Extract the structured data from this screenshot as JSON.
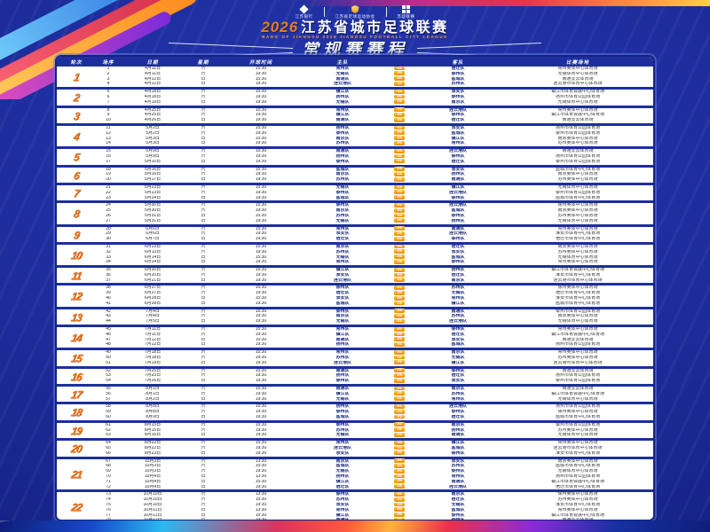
{
  "poster": {
    "logos": [
      {
        "icon": "bank-diamond-icon",
        "label": "江苏银行"
      },
      {
        "icon": "league-shield-icon",
        "label": "江苏省足球运动协会"
      },
      {
        "icon": "sponsor-emblem-icon",
        "label": "苏超联赛"
      }
    ],
    "year": "2026",
    "title": "江苏省城市足球联赛",
    "subtitle_en": "BANK OF JIANGSU 2026 JIANGSU FOOTBALL CITY LEAGUE",
    "banner": "常规赛赛程"
  },
  "colors": {
    "accent_orange": "#f0791e",
    "navy": "#1c2f9e",
    "gold_badge": "#f5a623",
    "card_white": "#ffffff"
  },
  "table": {
    "header_cells": [
      "轮次",
      "场序",
      "日期",
      "星期",
      "开球时间",
      "主队",
      "",
      "客队",
      "比赛场地"
    ],
    "vs_label": "VS",
    "rounds": [
      {
        "n": "1",
        "matches": [
          {
            "no": "1",
            "date": "4月11日",
            "wk": "六",
            "time": "15:30",
            "home": "常州队",
            "away": "宿迁队",
            "venue": "常州奥体中心体育场"
          },
          {
            "no": "2",
            "date": "4月11日",
            "wk": "六",
            "time": "19:30",
            "home": "无锡队",
            "away": "徐州队",
            "venue": "无锡体育中心体育场"
          },
          {
            "no": "3",
            "date": "4月12日",
            "wk": "日",
            "time": "15:30",
            "home": "南通队",
            "away": "盐城队",
            "venue": "南通支云体育场"
          },
          {
            "no": "4",
            "date": "4月12日",
            "wk": "日",
            "time": "19:30",
            "home": "连云港队",
            "away": "苏州队",
            "venue": "连云港市体育中心体育场"
          }
        ]
      },
      {
        "n": "2",
        "matches": [
          {
            "no": "5",
            "date": "4月18日",
            "wk": "六",
            "time": "15:30",
            "home": "镇江队",
            "away": "淮安队",
            "venue": "镇江市体育会展中心体育场"
          },
          {
            "no": "6",
            "date": "4月18日",
            "wk": "六",
            "time": "19:30",
            "home": "扬州队",
            "away": "泰州队",
            "venue": "扬州市体育公园体育场"
          },
          {
            "no": "7",
            "date": "4月19日",
            "wk": "日",
            "time": "19:30",
            "home": "无锡队",
            "away": "南京队",
            "venue": "无锡体育中心体育场"
          }
        ]
      },
      {
        "n": "3",
        "matches": [
          {
            "no": "8",
            "date": "4月25日",
            "wk": "六",
            "time": "15:30",
            "home": "常州队",
            "away": "连云港队",
            "venue": "常州奥体中心体育场"
          },
          {
            "no": "9",
            "date": "4月25日",
            "wk": "六",
            "time": "19:30",
            "home": "镇江队",
            "away": "徐州队",
            "venue": "镇江市体育会展中心体育场"
          },
          {
            "no": "10",
            "date": "4月26日",
            "wk": "日",
            "time": "19:30",
            "home": "南通队",
            "away": "宿迁队",
            "venue": "南通支云体育场"
          }
        ]
      },
      {
        "n": "4",
        "matches": [
          {
            "no": "11",
            "date": "5月2日",
            "wk": "六",
            "time": "15:30",
            "home": "扬州队",
            "away": "淮安队",
            "venue": "扬州市体育公园体育场"
          },
          {
            "no": "12",
            "date": "5月2日",
            "wk": "六",
            "time": "19:30",
            "home": "泰州队",
            "away": "盐城队",
            "venue": "泰州市体育公园体育场"
          },
          {
            "no": "13",
            "date": "5月3日",
            "wk": "日",
            "time": "15:30",
            "home": "南京队",
            "away": "镇江队",
            "venue": "南京奥体中心体育场"
          },
          {
            "no": "14",
            "date": "5月3日",
            "wk": "日",
            "time": "19:30",
            "home": "苏州队",
            "away": "常州队",
            "venue": "苏州奥体中心体育场"
          }
        ]
      },
      {
        "n": "5",
        "matches": [
          {
            "no": "15",
            "date": "5月9日",
            "wk": "六",
            "time": "15:30",
            "home": "南通队",
            "away": "连云港队",
            "venue": "南通支云体育场"
          },
          {
            "no": "16",
            "date": "5月9日",
            "wk": "六",
            "time": "19:30",
            "home": "扬州队",
            "away": "徐州队",
            "venue": "扬州市体育公园体育场"
          },
          {
            "no": "17",
            "date": "5月10日",
            "wk": "日",
            "time": "19:30",
            "home": "泰州队",
            "away": "宿迁队",
            "venue": "泰州市体育公园体育场"
          }
        ]
      },
      {
        "n": "6",
        "matches": [
          {
            "no": "18",
            "date": "5月16日",
            "wk": "六",
            "time": "15:30",
            "home": "盐城队",
            "away": "淮安队",
            "venue": "盐城市体育中心体育场"
          },
          {
            "no": "19",
            "date": "5月16日",
            "wk": "六",
            "time": "19:30",
            "home": "南京队",
            "away": "扬州队",
            "venue": "南京奥体中心体育场"
          },
          {
            "no": "20",
            "date": "5月17日",
            "wk": "日",
            "time": "19:30",
            "home": "苏州队",
            "away": "南通队",
            "venue": "苏州奥体中心体育场"
          }
        ]
      },
      {
        "n": "7",
        "matches": [
          {
            "no": "21",
            "date": "5月23日",
            "wk": "六",
            "time": "15:30",
            "home": "无锡队",
            "away": "镇江队",
            "venue": "无锡体育中心体育场"
          },
          {
            "no": "22",
            "date": "5月23日",
            "wk": "六",
            "time": "19:30",
            "home": "泰州队",
            "away": "连云港队",
            "venue": "泰州市体育公园体育场"
          },
          {
            "no": "23",
            "date": "5月24日",
            "wk": "日",
            "time": "19:30",
            "home": "盐城队",
            "away": "徐州队",
            "venue": "盐城市体育中心体育场"
          }
        ]
      },
      {
        "n": "8",
        "matches": [
          {
            "no": "24",
            "date": "5月30日",
            "wk": "六",
            "time": "15:30",
            "home": "徐州队",
            "away": "连云港队",
            "venue": "徐州奥体中心体育场"
          },
          {
            "no": "25",
            "date": "5月30日",
            "wk": "六",
            "time": "19:30",
            "home": "南京队",
            "away": "盐城队",
            "venue": "南京奥体中心体育场"
          },
          {
            "no": "26",
            "date": "5月31日",
            "wk": "日",
            "time": "15:30",
            "home": "苏州队",
            "away": "泰州队",
            "venue": "苏州奥体中心体育场"
          },
          {
            "no": "27",
            "date": "5月31日",
            "wk": "日",
            "time": "19:30",
            "home": "无锡队",
            "away": "扬州队",
            "venue": "无锡体育中心体育场"
          }
        ]
      },
      {
        "n": "9",
        "matches": [
          {
            "no": "28",
            "date": "6月6日",
            "wk": "六",
            "time": "15:30",
            "home": "常州队",
            "away": "南通队",
            "venue": "常州奥体中心体育场"
          },
          {
            "no": "29",
            "date": "6月6日",
            "wk": "六",
            "time": "19:30",
            "home": "淮安队",
            "away": "连云港队",
            "venue": "淮安市体育中心体育场"
          },
          {
            "no": "30",
            "date": "6月7日",
            "wk": "日",
            "time": "19:30",
            "home": "宿迁队",
            "away": "徐州队",
            "venue": "宿迁市体育中心体育场"
          }
        ]
      },
      {
        "n": "10",
        "matches": [
          {
            "no": "31",
            "date": "6月13日",
            "wk": "六",
            "time": "15:30",
            "home": "南京队",
            "away": "宿迁队",
            "venue": "南京奥体中心体育场"
          },
          {
            "no": "32",
            "date": "6月13日",
            "wk": "六",
            "time": "19:30",
            "home": "苏州队",
            "away": "淮安队",
            "venue": "苏州奥体中心体育场"
          },
          {
            "no": "33",
            "date": "6月14日",
            "wk": "日",
            "time": "15:30",
            "home": "无锡队",
            "away": "盐城队",
            "venue": "无锡体育中心体育场"
          },
          {
            "no": "34",
            "date": "6月14日",
            "wk": "日",
            "time": "19:30",
            "home": "常州队",
            "away": "泰州队",
            "venue": "常州奥体中心体育场"
          }
        ]
      },
      {
        "n": "11",
        "matches": [
          {
            "no": "35",
            "date": "6月20日",
            "wk": "六",
            "time": "15:30",
            "home": "镇江队",
            "away": "扬州队",
            "venue": "镇江市体育会展中心体育场"
          },
          {
            "no": "36",
            "date": "6月20日",
            "wk": "六",
            "time": "19:30",
            "home": "淮安队",
            "away": "宿迁队",
            "venue": "淮安市体育中心体育场"
          },
          {
            "no": "37",
            "date": "6月21日",
            "wk": "日",
            "time": "19:30",
            "home": "连云港队",
            "away": "南京队",
            "venue": "连云港市体育中心体育场"
          }
        ]
      },
      {
        "n": "12",
        "matches": [
          {
            "no": "38",
            "date": "6月27日",
            "wk": "六",
            "time": "15:30",
            "home": "徐州队",
            "away": "苏州队",
            "venue": "徐州奥体中心体育场"
          },
          {
            "no": "39",
            "date": "6月27日",
            "wk": "六",
            "time": "19:30",
            "home": "宿迁队",
            "away": "无锡队",
            "venue": "宿迁市体育中心体育场"
          },
          {
            "no": "40",
            "date": "6月28日",
            "wk": "日",
            "time": "15:30",
            "home": "淮安队",
            "away": "常州队",
            "venue": "淮安市体育中心体育场"
          },
          {
            "no": "41",
            "date": "6月28日",
            "wk": "日",
            "time": "19:30",
            "home": "盐城队",
            "away": "镇江队",
            "venue": "盐城市体育中心体育场"
          }
        ]
      },
      {
        "n": "13",
        "matches": [
          {
            "no": "42",
            "date": "7月4日",
            "wk": "六",
            "time": "15:30",
            "home": "泰州队",
            "away": "南通队",
            "venue": "泰州市体育公园体育场"
          },
          {
            "no": "43",
            "date": "7月4日",
            "wk": "六",
            "time": "19:30",
            "home": "南京队",
            "away": "苏州队",
            "venue": "南京奥体中心体育场"
          },
          {
            "no": "44",
            "date": "7月5日",
            "wk": "日",
            "time": "19:30",
            "home": "无锡队",
            "away": "连云港队",
            "venue": "无锡体育中心体育场"
          }
        ]
      },
      {
        "n": "14",
        "matches": [
          {
            "no": "45",
            "date": "7月11日",
            "wk": "六",
            "time": "15:30",
            "home": "常州队",
            "away": "徐州队",
            "venue": "常州奥体中心体育场"
          },
          {
            "no": "46",
            "date": "7月11日",
            "wk": "六",
            "time": "19:30",
            "home": "镇江队",
            "away": "宿迁队",
            "venue": "镇江市体育会展中心体育场"
          },
          {
            "no": "47",
            "date": "7月12日",
            "wk": "日",
            "time": "15:30",
            "home": "南通队",
            "away": "淮安队",
            "venue": "南通支云体育场"
          },
          {
            "no": "48",
            "date": "7月12日",
            "wk": "日",
            "time": "19:30",
            "home": "扬州队",
            "away": "盐城队",
            "venue": "扬州市体育公园体育场"
          }
        ]
      },
      {
        "n": "15",
        "matches": [
          {
            "no": "49",
            "date": "7月18日",
            "wk": "六",
            "time": "15:30",
            "home": "常州队",
            "away": "南京队",
            "venue": "常州奥体中心体育场"
          },
          {
            "no": "50",
            "date": "7月18日",
            "wk": "六",
            "time": "19:30",
            "home": "苏州队",
            "away": "无锡队",
            "venue": "苏州奥体中心体育场"
          },
          {
            "no": "51",
            "date": "7月19日",
            "wk": "日",
            "time": "19:30",
            "home": "连云港队",
            "away": "镇江队",
            "venue": "连云港市体育中心体育场"
          }
        ]
      },
      {
        "n": "16",
        "matches": [
          {
            "no": "52",
            "date": "7月25日",
            "wk": "六",
            "time": "15:30",
            "home": "南通队",
            "away": "徐州队",
            "venue": "南通支云体育场"
          },
          {
            "no": "53",
            "date": "7月25日",
            "wk": "六",
            "time": "19:30",
            "home": "扬州队",
            "away": "宿迁队",
            "venue": "扬州市体育公园体育场"
          },
          {
            "no": "54",
            "date": "7月26日",
            "wk": "日",
            "time": "19:30",
            "home": "泰州队",
            "away": "淮安队",
            "venue": "泰州市体育公园体育场"
          }
        ]
      },
      {
        "n": "17",
        "matches": [
          {
            "no": "55",
            "date": "8月1日",
            "wk": "六",
            "time": "15:30",
            "home": "南通队",
            "away": "南京队",
            "venue": "南通支云体育场"
          },
          {
            "no": "56",
            "date": "8月1日",
            "wk": "六",
            "time": "19:30",
            "home": "镇江队",
            "away": "苏州队",
            "venue": "镇江市体育会展中心体育场"
          },
          {
            "no": "57",
            "date": "8月2日",
            "wk": "日",
            "time": "19:30",
            "home": "无锡队",
            "away": "常州队",
            "venue": "无锡体育中心体育场"
          }
        ]
      },
      {
        "n": "18",
        "matches": [
          {
            "no": "58",
            "date": "8月8日",
            "wk": "六",
            "time": "15:30",
            "home": "扬州队",
            "away": "连云港队",
            "venue": "扬州市体育公园体育场"
          },
          {
            "no": "59",
            "date": "8月8日",
            "wk": "六",
            "time": "19:30",
            "home": "徐州队",
            "away": "泰州队",
            "venue": "徐州奥体中心体育场"
          },
          {
            "no": "60",
            "date": "8月9日",
            "wk": "日",
            "time": "19:30",
            "home": "盐城队",
            "away": "宿迁队",
            "venue": "盐城市体育中心体育场"
          }
        ]
      },
      {
        "n": "19",
        "matches": [
          {
            "no": "61",
            "date": "8月15日",
            "wk": "六",
            "time": "15:30",
            "home": "泰州队",
            "away": "南京队",
            "venue": "泰州市体育公园体育场"
          },
          {
            "no": "62",
            "date": "8月15日",
            "wk": "六",
            "time": "19:30",
            "home": "苏州队",
            "away": "扬州队",
            "venue": "苏州奥体中心体育场"
          },
          {
            "no": "63",
            "date": "8月16日",
            "wk": "日",
            "time": "19:30",
            "home": "无锡队",
            "away": "南通队",
            "venue": "无锡体育中心体育场"
          }
        ]
      },
      {
        "n": "20",
        "matches": [
          {
            "no": "64",
            "date": "8月22日",
            "wk": "六",
            "time": "15:30",
            "home": "常州队",
            "away": "镇江队",
            "venue": "常州奥体中心体育场"
          },
          {
            "no": "65",
            "date": "8月22日",
            "wk": "六",
            "time": "19:30",
            "home": "连云港队",
            "away": "盐城队",
            "venue": "连云港市体育中心体育场"
          },
          {
            "no": "66",
            "date": "8月23日",
            "wk": "日",
            "time": "19:30",
            "home": "淮安队",
            "away": "徐州队",
            "venue": "淮安市体育中心体育场"
          }
        ]
      },
      {
        "n": "21",
        "matches": [
          {
            "no": "67",
            "date": "10月3日",
            "wk": "六",
            "time": "13:30",
            "home": "南京队",
            "away": "淮安队",
            "venue": "南京奥体中心体育场"
          },
          {
            "no": "68",
            "date": "10月3日",
            "wk": "六",
            "time": "15:30",
            "home": "盐城队",
            "away": "苏州队",
            "venue": "盐城市体育中心体育场"
          },
          {
            "no": "69",
            "date": "10月3日",
            "wk": "六",
            "time": "19:30",
            "home": "无锡队",
            "away": "泰州队",
            "venue": "无锡体育中心体育场"
          },
          {
            "no": "70",
            "date": "10月4日",
            "wk": "日",
            "time": "13:30",
            "home": "扬州队",
            "away": "常州队",
            "venue": "扬州市体育公园体育场"
          },
          {
            "no": "71",
            "date": "10月4日",
            "wk": "日",
            "time": "15:30",
            "home": "镇江队",
            "away": "南通队",
            "venue": "镇江市体育会展中心体育场"
          },
          {
            "no": "72",
            "date": "10月4日",
            "wk": "日",
            "time": "19:30",
            "home": "宿迁队",
            "away": "连云港队",
            "venue": "宿迁市体育中心体育场"
          }
        ]
      },
      {
        "n": "22",
        "matches": [
          {
            "no": "73",
            "date": "10月10日",
            "wk": "六",
            "time": "13:30",
            "home": "徐州队",
            "away": "南京队",
            "venue": "徐州奥体中心体育场"
          },
          {
            "no": "74",
            "date": "10月10日",
            "wk": "六",
            "time": "15:30",
            "home": "苏州队",
            "away": "宿迁队",
            "venue": "苏州奥体中心体育场"
          },
          {
            "no": "75",
            "date": "10月10日",
            "wk": "六",
            "time": "19:30",
            "home": "淮安队",
            "away": "无锡队",
            "venue": "淮安市体育中心体育场"
          },
          {
            "no": "76",
            "date": "10月11日",
            "wk": "日",
            "time": "13:30",
            "home": "常州队",
            "away": "盐城队",
            "venue": "常州奥体中心体育场"
          },
          {
            "no": "77",
            "date": "10月11日",
            "wk": "日",
            "time": "15:30",
            "home": "镇江队",
            "away": "泰州队",
            "venue": "镇江市体育会展中心体育场"
          },
          {
            "no": "78",
            "date": "10月11日",
            "wk": "日",
            "time": "19:30",
            "home": "南通队",
            "away": "扬州队",
            "venue": "南通支云体育场"
          }
        ]
      }
    ]
  }
}
